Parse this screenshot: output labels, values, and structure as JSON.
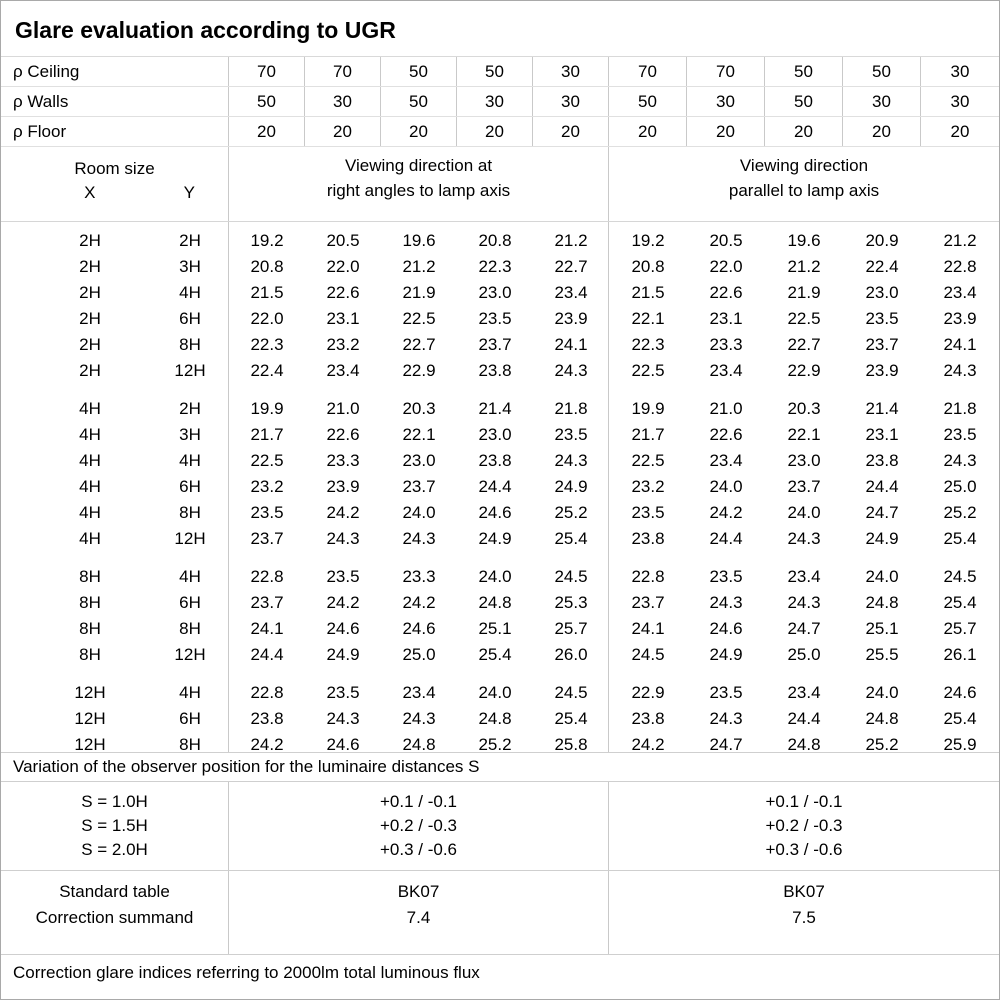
{
  "title": "Glare evaluation according to UGR",
  "reflectance": {
    "rows": [
      {
        "label": "ρ Ceiling",
        "values": [
          "70",
          "70",
          "50",
          "50",
          "30",
          "70",
          "70",
          "50",
          "50",
          "30"
        ]
      },
      {
        "label": "ρ Walls",
        "values": [
          "50",
          "30",
          "50",
          "30",
          "30",
          "50",
          "30",
          "50",
          "30",
          "30"
        ]
      },
      {
        "label": "ρ Floor",
        "values": [
          "20",
          "20",
          "20",
          "20",
          "20",
          "20",
          "20",
          "20",
          "20",
          "20"
        ]
      }
    ]
  },
  "room_header": {
    "label": "Room size",
    "x": "X",
    "y": "Y"
  },
  "direction_headers": {
    "left_line1": "Viewing direction at",
    "left_line2": "right angles to lamp axis",
    "right_line1": "Viewing direction",
    "right_line2": "parallel to lamp axis"
  },
  "ugr_table": {
    "groups": [
      {
        "rows": [
          {
            "x": "2H",
            "y": "2H",
            "right_angles": [
              "19.2",
              "20.5",
              "19.6",
              "20.8",
              "21.2"
            ],
            "parallel": [
              "19.2",
              "20.5",
              "19.6",
              "20.9",
              "21.2"
            ]
          },
          {
            "x": "2H",
            "y": "3H",
            "right_angles": [
              "20.8",
              "22.0",
              "21.2",
              "22.3",
              "22.7"
            ],
            "parallel": [
              "20.8",
              "22.0",
              "21.2",
              "22.4",
              "22.8"
            ]
          },
          {
            "x": "2H",
            "y": "4H",
            "right_angles": [
              "21.5",
              "22.6",
              "21.9",
              "23.0",
              "23.4"
            ],
            "parallel": [
              "21.5",
              "22.6",
              "21.9",
              "23.0",
              "23.4"
            ]
          },
          {
            "x": "2H",
            "y": "6H",
            "right_angles": [
              "22.0",
              "23.1",
              "22.5",
              "23.5",
              "23.9"
            ],
            "parallel": [
              "22.1",
              "23.1",
              "22.5",
              "23.5",
              "23.9"
            ]
          },
          {
            "x": "2H",
            "y": "8H",
            "right_angles": [
              "22.3",
              "23.2",
              "22.7",
              "23.7",
              "24.1"
            ],
            "parallel": [
              "22.3",
              "23.3",
              "22.7",
              "23.7",
              "24.1"
            ]
          },
          {
            "x": "2H",
            "y": "12H",
            "right_angles": [
              "22.4",
              "23.4",
              "22.9",
              "23.8",
              "24.3"
            ],
            "parallel": [
              "22.5",
              "23.4",
              "22.9",
              "23.9",
              "24.3"
            ]
          }
        ]
      },
      {
        "rows": [
          {
            "x": "4H",
            "y": "2H",
            "right_angles": [
              "19.9",
              "21.0",
              "20.3",
              "21.4",
              "21.8"
            ],
            "parallel": [
              "19.9",
              "21.0",
              "20.3",
              "21.4",
              "21.8"
            ]
          },
          {
            "x": "4H",
            "y": "3H",
            "right_angles": [
              "21.7",
              "22.6",
              "22.1",
              "23.0",
              "23.5"
            ],
            "parallel": [
              "21.7",
              "22.6",
              "22.1",
              "23.1",
              "23.5"
            ]
          },
          {
            "x": "4H",
            "y": "4H",
            "right_angles": [
              "22.5",
              "23.3",
              "23.0",
              "23.8",
              "24.3"
            ],
            "parallel": [
              "22.5",
              "23.4",
              "23.0",
              "23.8",
              "24.3"
            ]
          },
          {
            "x": "4H",
            "y": "6H",
            "right_angles": [
              "23.2",
              "23.9",
              "23.7",
              "24.4",
              "24.9"
            ],
            "parallel": [
              "23.2",
              "24.0",
              "23.7",
              "24.4",
              "25.0"
            ]
          },
          {
            "x": "4H",
            "y": "8H",
            "right_angles": [
              "23.5",
              "24.2",
              "24.0",
              "24.6",
              "25.2"
            ],
            "parallel": [
              "23.5",
              "24.2",
              "24.0",
              "24.7",
              "25.2"
            ]
          },
          {
            "x": "4H",
            "y": "12H",
            "right_angles": [
              "23.7",
              "24.3",
              "24.3",
              "24.9",
              "25.4"
            ],
            "parallel": [
              "23.8",
              "24.4",
              "24.3",
              "24.9",
              "25.4"
            ]
          }
        ]
      },
      {
        "rows": [
          {
            "x": "8H",
            "y": "4H",
            "right_angles": [
              "22.8",
              "23.5",
              "23.3",
              "24.0",
              "24.5"
            ],
            "parallel": [
              "22.8",
              "23.5",
              "23.4",
              "24.0",
              "24.5"
            ]
          },
          {
            "x": "8H",
            "y": "6H",
            "right_angles": [
              "23.7",
              "24.2",
              "24.2",
              "24.8",
              "25.3"
            ],
            "parallel": [
              "23.7",
              "24.3",
              "24.3",
              "24.8",
              "25.4"
            ]
          },
          {
            "x": "8H",
            "y": "8H",
            "right_angles": [
              "24.1",
              "24.6",
              "24.6",
              "25.1",
              "25.7"
            ],
            "parallel": [
              "24.1",
              "24.6",
              "24.7",
              "25.1",
              "25.7"
            ]
          },
          {
            "x": "8H",
            "y": "12H",
            "right_angles": [
              "24.4",
              "24.9",
              "25.0",
              "25.4",
              "26.0"
            ],
            "parallel": [
              "24.5",
              "24.9",
              "25.0",
              "25.5",
              "26.1"
            ]
          }
        ]
      },
      {
        "rows": [
          {
            "x": "12H",
            "y": "4H",
            "right_angles": [
              "22.8",
              "23.5",
              "23.4",
              "24.0",
              "24.5"
            ],
            "parallel": [
              "22.9",
              "23.5",
              "23.4",
              "24.0",
              "24.6"
            ]
          },
          {
            "x": "12H",
            "y": "6H",
            "right_angles": [
              "23.8",
              "24.3",
              "24.3",
              "24.8",
              "25.4"
            ],
            "parallel": [
              "23.8",
              "24.3",
              "24.4",
              "24.8",
              "25.4"
            ]
          },
          {
            "x": "12H",
            "y": "8H",
            "right_angles": [
              "24.2",
              "24.6",
              "24.8",
              "25.2",
              "25.8"
            ],
            "parallel": [
              "24.2",
              "24.7",
              "24.8",
              "25.2",
              "25.9"
            ]
          }
        ]
      }
    ]
  },
  "variation_note": "Variation of the observer position for the luminaire distances S",
  "variation": {
    "labels": [
      "S = 1.0H",
      "S = 1.5H",
      "S = 2.0H"
    ],
    "right_angles": [
      "+0.1 / -0.1",
      "+0.2 / -0.3",
      "+0.3 / -0.6"
    ],
    "parallel": [
      "+0.1 / -0.1",
      "+0.2 / -0.3",
      "+0.3 / -0.6"
    ]
  },
  "standard": {
    "labels": [
      "Standard table",
      "Correction summand"
    ],
    "right_angles": [
      "BK07",
      "7.4"
    ],
    "parallel": [
      "BK07",
      "7.5"
    ]
  },
  "footer_note": "Correction glare indices referring to 2000lm total luminous flux"
}
